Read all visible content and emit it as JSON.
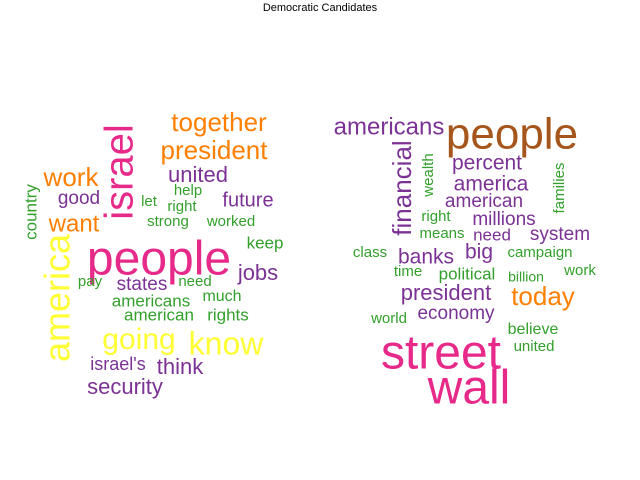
{
  "chart_data": {
    "type": "wordcloud",
    "title": "Democratic Candidates",
    "palette": {
      "pink": "#e7298a",
      "purple": "#7b3294",
      "orange": "#ff7f00",
      "green": "#33a02c",
      "yellow": "#ffff33",
      "brown": "#a6561c"
    },
    "clouds": [
      {
        "words": [
          {
            "text": "people",
            "weight": 48,
            "color": "pink"
          },
          {
            "text": "israel",
            "weight": 40,
            "color": "pink"
          },
          {
            "text": "america",
            "weight": 36,
            "color": "yellow"
          },
          {
            "text": "know",
            "weight": 32,
            "color": "yellow"
          },
          {
            "text": "going",
            "weight": 30,
            "color": "yellow"
          },
          {
            "text": "together",
            "weight": 26,
            "color": "orange"
          },
          {
            "text": "president",
            "weight": 26,
            "color": "orange"
          },
          {
            "text": "work",
            "weight": 26,
            "color": "orange"
          },
          {
            "text": "want",
            "weight": 24,
            "color": "orange"
          },
          {
            "text": "united",
            "weight": 22,
            "color": "purple"
          },
          {
            "text": "security",
            "weight": 22,
            "color": "purple"
          },
          {
            "text": "jobs",
            "weight": 22,
            "color": "purple"
          },
          {
            "text": "think",
            "weight": 22,
            "color": "purple"
          },
          {
            "text": "future",
            "weight": 20,
            "color": "purple"
          },
          {
            "text": "good",
            "weight": 19,
            "color": "purple"
          },
          {
            "text": "states",
            "weight": 19,
            "color": "purple"
          },
          {
            "text": "israel's",
            "weight": 18,
            "color": "purple"
          },
          {
            "text": "americans",
            "weight": 17,
            "color": "green"
          },
          {
            "text": "american",
            "weight": 17,
            "color": "green"
          },
          {
            "text": "rights",
            "weight": 17,
            "color": "green"
          },
          {
            "text": "keep",
            "weight": 17,
            "color": "green"
          },
          {
            "text": "country",
            "weight": 17,
            "color": "green"
          },
          {
            "text": "much",
            "weight": 16,
            "color": "green"
          },
          {
            "text": "help",
            "weight": 15,
            "color": "green"
          },
          {
            "text": "let",
            "weight": 15,
            "color": "green"
          },
          {
            "text": "right",
            "weight": 15,
            "color": "green"
          },
          {
            "text": "strong",
            "weight": 15,
            "color": "green"
          },
          {
            "text": "worked",
            "weight": 15,
            "color": "green"
          },
          {
            "text": "need",
            "weight": 15,
            "color": "green"
          },
          {
            "text": "pay",
            "weight": 15,
            "color": "green"
          }
        ]
      },
      {
        "words": [
          {
            "text": "street",
            "weight": 48,
            "color": "pink"
          },
          {
            "text": "wall",
            "weight": 48,
            "color": "pink"
          },
          {
            "text": "people",
            "weight": 44,
            "color": "brown"
          },
          {
            "text": "financial",
            "weight": 26,
            "color": "purple"
          },
          {
            "text": "americans",
            "weight": 24,
            "color": "purple"
          },
          {
            "text": "today",
            "weight": 26,
            "color": "orange"
          },
          {
            "text": "president",
            "weight": 22,
            "color": "purple"
          },
          {
            "text": "percent",
            "weight": 21,
            "color": "purple"
          },
          {
            "text": "america",
            "weight": 21,
            "color": "purple"
          },
          {
            "text": "banks",
            "weight": 21,
            "color": "purple"
          },
          {
            "text": "big",
            "weight": 21,
            "color": "purple"
          },
          {
            "text": "american",
            "weight": 19,
            "color": "purple"
          },
          {
            "text": "millions",
            "weight": 19,
            "color": "purple"
          },
          {
            "text": "system",
            "weight": 19,
            "color": "purple"
          },
          {
            "text": "economy",
            "weight": 19,
            "color": "purple"
          },
          {
            "text": "need",
            "weight": 17,
            "color": "purple"
          },
          {
            "text": "political",
            "weight": 17,
            "color": "green"
          },
          {
            "text": "believe",
            "weight": 16,
            "color": "green"
          },
          {
            "text": "united",
            "weight": 15,
            "color": "green"
          },
          {
            "text": "campaign",
            "weight": 15,
            "color": "green"
          },
          {
            "text": "families",
            "weight": 15,
            "color": "green"
          },
          {
            "text": "wealth",
            "weight": 15,
            "color": "green"
          },
          {
            "text": "right",
            "weight": 15,
            "color": "green"
          },
          {
            "text": "means",
            "weight": 15,
            "color": "green"
          },
          {
            "text": "class",
            "weight": 15,
            "color": "green"
          },
          {
            "text": "time",
            "weight": 15,
            "color": "green"
          },
          {
            "text": "billion",
            "weight": 14,
            "color": "green"
          },
          {
            "text": "work",
            "weight": 15,
            "color": "green"
          },
          {
            "text": "world",
            "weight": 15,
            "color": "green"
          }
        ]
      }
    ]
  }
}
